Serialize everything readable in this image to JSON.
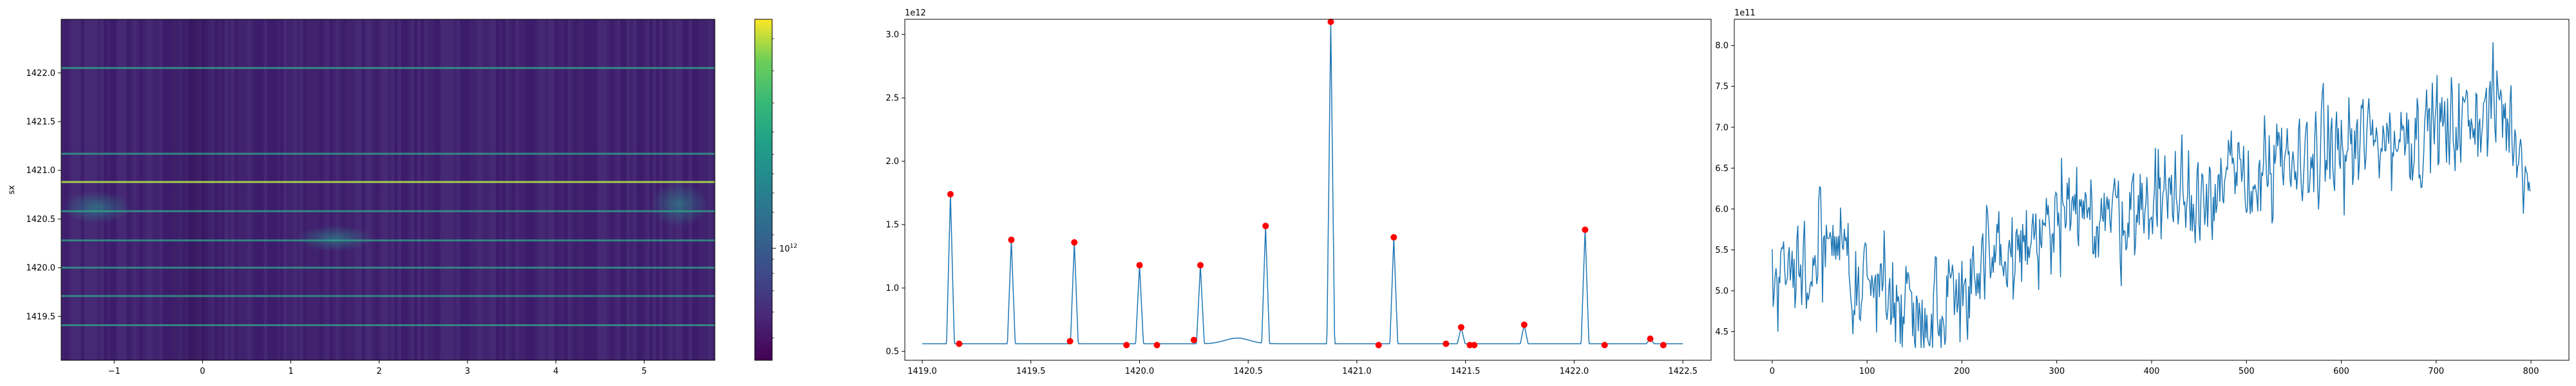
{
  "colors": {
    "line": "#1f77b4",
    "peak": "#ff0000",
    "heatmap_low": "#440154",
    "heatmap_mid": "#21918c",
    "heatmap_high": "#fde725"
  },
  "chart_data": [
    {
      "type": "heatmap",
      "title": "",
      "xlabel": "",
      "ylabel": "sx",
      "xlim": [
        -1.6,
        5.8
      ],
      "ylim": [
        1419.05,
        1422.55
      ],
      "x_ticks": [
        -1,
        0,
        1,
        2,
        3,
        4,
        5
      ],
      "y_ticks": [
        1419.5,
        1420.0,
        1420.5,
        1421.0,
        1421.5,
        1422.0
      ],
      "y_tick_labels": [
        "1419.5",
        "1420.0",
        "1420.5",
        "1421.0",
        "1421.5",
        "1422.0"
      ],
      "colorbar": {
        "scale": "log",
        "tick_label": "10^12",
        "tick_base": "10",
        "tick_exp": "12"
      },
      "bright_rows": [
        {
          "sx": 1422.05,
          "level": 0.55
        },
        {
          "sx": 1421.17,
          "level": 0.5
        },
        {
          "sx": 1420.88,
          "level": 0.85
        },
        {
          "sx": 1420.58,
          "level": 0.5
        },
        {
          "sx": 1420.28,
          "level": 0.45
        },
        {
          "sx": 1420.0,
          "level": 0.45
        },
        {
          "sx": 1419.71,
          "level": 0.45
        },
        {
          "sx": 1419.41,
          "level": 0.5
        }
      ]
    },
    {
      "type": "line",
      "title": "",
      "xlabel": "",
      "ylabel": "",
      "offset_label": "1e12",
      "xlim": [
        1418.92,
        1422.63
      ],
      "ylim": [
        0.43,
        3.12
      ],
      "x_ticks": [
        1419.0,
        1419.5,
        1420.0,
        1420.5,
        1421.0,
        1421.5,
        1422.0,
        1422.5
      ],
      "x_tick_labels": [
        "1419.0",
        "1419.5",
        "1420.0",
        "1420.5",
        "1421.0",
        "1421.5",
        "1422.0",
        "1422.5"
      ],
      "y_ticks": [
        0.5,
        1.0,
        1.5,
        2.0,
        2.5,
        3.0
      ],
      "y_tick_labels": [
        "0.5",
        "1.0",
        "1.5",
        "2.0",
        "2.5",
        "3.0"
      ],
      "baseline": 0.56,
      "x_start": 1419.0,
      "x_end": 1422.5,
      "peaks_x": [
        1419.13,
        1419.41,
        1419.7,
        1420.0,
        1420.28,
        1420.58,
        1420.88,
        1421.17,
        1421.48,
        1421.77,
        1422.05,
        1422.35
      ],
      "peaks_y": [
        1.74,
        1.38,
        1.36,
        1.18,
        1.18,
        1.49,
        3.1,
        1.4,
        0.69,
        0.71,
        1.46,
        0.6
      ],
      "markers": {
        "x": [
          1419.13,
          1419.41,
          1419.7,
          1420.0,
          1420.28,
          1420.58,
          1420.88,
          1421.17,
          1421.48,
          1421.77,
          1422.05,
          1422.35,
          1419.17,
          1419.68,
          1419.94,
          1420.08,
          1420.25,
          1421.1,
          1421.41,
          1421.52,
          1421.54,
          1422.14,
          1422.41
        ],
        "y": [
          1.74,
          1.38,
          1.36,
          1.18,
          1.18,
          1.49,
          3.1,
          1.4,
          0.69,
          0.71,
          1.46,
          0.6,
          0.56,
          0.58,
          0.55,
          0.55,
          0.59,
          0.55,
          0.56,
          0.55,
          0.55,
          0.55,
          0.55
        ]
      }
    },
    {
      "type": "line",
      "title": "",
      "xlabel": "",
      "ylabel": "",
      "offset_label": "1e11",
      "xlim": [
        -40,
        840
      ],
      "ylim": [
        4.15,
        8.32
      ],
      "x_ticks": [
        0,
        100,
        200,
        300,
        400,
        500,
        600,
        700,
        800
      ],
      "x_tick_labels": [
        "0",
        "100",
        "200",
        "300",
        "400",
        "500",
        "600",
        "700",
        "800"
      ],
      "y_ticks": [
        4.5,
        5.0,
        5.5,
        6.0,
        6.5,
        7.0,
        7.5,
        8.0
      ],
      "y_tick_labels": [
        "4.5",
        "5.0",
        "5.5",
        "6.0",
        "6.5",
        "7.0",
        "7.5",
        "8.0"
      ],
      "trend_x": [
        0,
        60,
        160,
        230,
        300,
        400,
        500,
        600,
        700,
        770,
        800
      ],
      "trend_y": [
        5.2,
        5.4,
        4.75,
        5.3,
        5.85,
        6.1,
        6.35,
        6.75,
        6.95,
        7.2,
        6.45
      ],
      "noise": 0.3,
      "n_points": 800
    }
  ]
}
